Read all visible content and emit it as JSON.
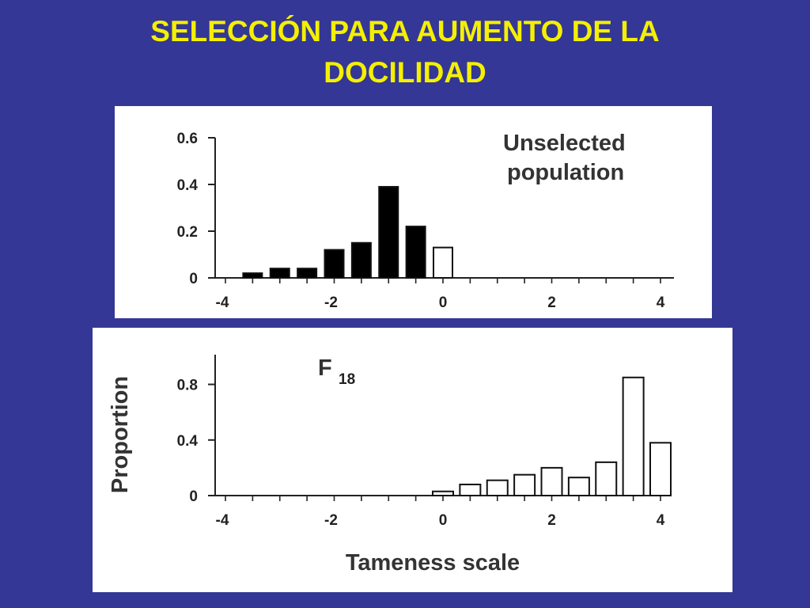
{
  "slide": {
    "title_line1": "SELECCIÓN PARA AUMENTO DE LA",
    "title_line2": "DOCILIDAD",
    "background": "#343795",
    "title_color": "#f4f000"
  },
  "chart_data": [
    {
      "type": "bar",
      "annotation_line1": "Unselected",
      "annotation_line2": "population",
      "xlim": [
        -4,
        4
      ],
      "ylim": [
        0,
        0.6
      ],
      "x_ticks": [
        -4,
        -2,
        0,
        2,
        4
      ],
      "x_tick_labels": [
        "-4",
        "-2",
        "0",
        "2",
        "4"
      ],
      "y_ticks": [
        0,
        0.2,
        0.4,
        0.6
      ],
      "y_tick_labels": [
        "0",
        "0.2",
        "0.4",
        "0.6"
      ],
      "bars": [
        {
          "x": -3.5,
          "y": 0.02,
          "fill": "#000000"
        },
        {
          "x": -3.0,
          "y": 0.04,
          "fill": "#000000"
        },
        {
          "x": -2.5,
          "y": 0.04,
          "fill": "#000000"
        },
        {
          "x": -2.0,
          "y": 0.12,
          "fill": "#000000"
        },
        {
          "x": -1.5,
          "y": 0.15,
          "fill": "#000000"
        },
        {
          "x": -1.0,
          "y": 0.39,
          "fill": "#000000"
        },
        {
          "x": -0.5,
          "y": 0.22,
          "fill": "#000000"
        },
        {
          "x": 0.0,
          "y": 0.13,
          "fill": "#ffffff"
        }
      ]
    },
    {
      "type": "bar",
      "annotation_main": "F",
      "annotation_sub": "18",
      "xlabel": "Tameness scale",
      "ylabel": "Proportion",
      "xlim": [
        -4,
        4
      ],
      "ylim": [
        0,
        0.9
      ],
      "x_ticks": [
        -4,
        -2,
        0,
        2,
        4
      ],
      "x_tick_labels": [
        "-4",
        "-2",
        "0",
        "2",
        "4"
      ],
      "y_ticks": [
        0,
        0.4,
        0.8
      ],
      "y_tick_labels": [
        "0",
        "0.4",
        "0.8"
      ],
      "bars": [
        {
          "x": 0.0,
          "y": 0.03,
          "fill": "#ffffff"
        },
        {
          "x": 0.5,
          "y": 0.08,
          "fill": "#ffffff"
        },
        {
          "x": 1.0,
          "y": 0.11,
          "fill": "#ffffff"
        },
        {
          "x": 1.5,
          "y": 0.15,
          "fill": "#ffffff"
        },
        {
          "x": 2.0,
          "y": 0.2,
          "fill": "#ffffff"
        },
        {
          "x": 2.5,
          "y": 0.13,
          "fill": "#ffffff"
        },
        {
          "x": 3.0,
          "y": 0.24,
          "fill": "#ffffff"
        },
        {
          "x": 3.5,
          "y": 0.85,
          "fill": "#ffffff"
        },
        {
          "x": 4.0,
          "y": 0.38,
          "fill": "#ffffff"
        }
      ]
    }
  ]
}
